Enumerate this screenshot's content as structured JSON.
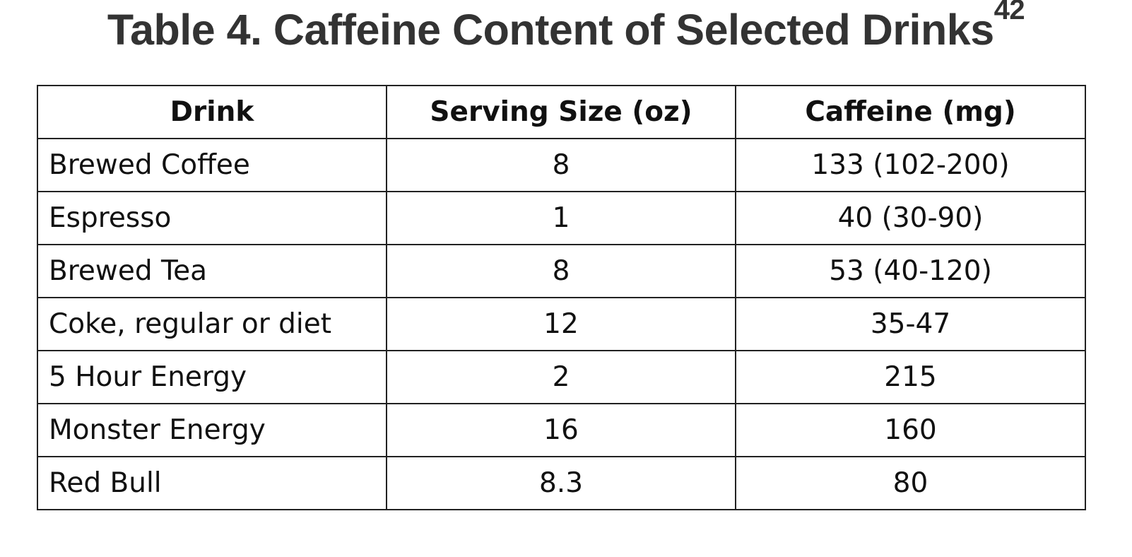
{
  "title": {
    "text": "Table 4. Caffeine Content of Selected Drinks",
    "reference": "42"
  },
  "table": {
    "headers": [
      "Drink",
      "Serving Size (oz)",
      "Caffeine (mg)"
    ],
    "rows": [
      [
        "Brewed Coffee",
        "8",
        "133 (102-200)"
      ],
      [
        "Espresso",
        "1",
        "40 (30-90)"
      ],
      [
        "Brewed Tea",
        "8",
        "53 (40-120)"
      ],
      [
        "Coke, regular or diet",
        "12",
        "35-47"
      ],
      [
        "5 Hour Energy",
        "2",
        "215"
      ],
      [
        "Monster Energy",
        "16",
        "160"
      ],
      [
        "Red Bull",
        "8.3",
        "80"
      ]
    ]
  }
}
